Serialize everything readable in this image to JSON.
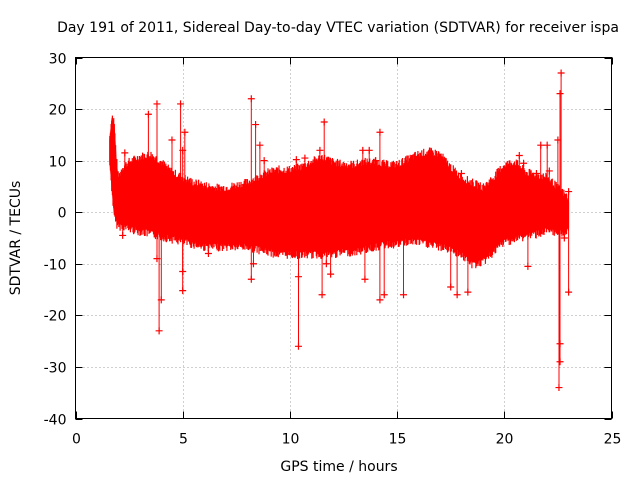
{
  "chart_data": {
    "type": "scatter",
    "title": "Day 191 of 2011, Sidereal Day-to-day VTEC variation (SDTVAR) for receiver ispa",
    "xlabel": "GPS time / hours",
    "ylabel": "SDTVAR / TECUs",
    "xlim": [
      0,
      25
    ],
    "ylim": [
      -40,
      30
    ],
    "xticks": [
      0,
      5,
      10,
      15,
      20,
      25
    ],
    "yticks": [
      -40,
      -30,
      -20,
      -10,
      0,
      10,
      20,
      30
    ],
    "grid": true,
    "marker": "plus",
    "color": "#ff0000",
    "envelope": {
      "description": "dense band of points with error bars, upper and lower bounds vs time",
      "x": [
        1.6,
        1.7,
        1.8,
        1.9,
        2.0,
        2.2,
        2.5,
        3.0,
        3.5,
        4.0,
        4.5,
        5.0,
        5.5,
        6.0,
        6.5,
        7.0,
        7.5,
        8.0,
        8.5,
        9.0,
        9.5,
        10.0,
        10.5,
        11.0,
        11.5,
        12.0,
        12.5,
        13.0,
        13.5,
        14.0,
        14.5,
        15.0,
        15.5,
        16.0,
        16.5,
        17.0,
        17.5,
        18.0,
        18.5,
        19.0,
        19.5,
        20.0,
        20.5,
        21.0,
        21.5,
        22.0,
        22.5,
        23.0
      ],
      "upper": [
        14,
        18,
        17,
        10,
        6,
        8,
        9,
        10,
        10.5,
        9,
        7,
        6,
        5,
        4.5,
        4,
        4,
        4.5,
        5,
        6,
        7,
        7.5,
        7.5,
        8,
        9,
        10,
        9,
        8.5,
        8.5,
        9,
        9,
        8.5,
        8.5,
        9.5,
        10.5,
        11,
        10.5,
        8,
        6,
        5,
        4,
        6,
        8.5,
        9,
        7,
        6.5,
        6,
        4,
        2
      ],
      "lower": [
        10,
        5,
        0,
        -1.5,
        -2,
        -2,
        -2.5,
        -3,
        -3.5,
        -4,
        -4.5,
        -5,
        -5.5,
        -6,
        -6,
        -6,
        -6,
        -6,
        -6.5,
        -7,
        -7.5,
        -7.5,
        -7.5,
        -7.5,
        -7.5,
        -7.5,
        -7,
        -7,
        -6.5,
        -6,
        -5.5,
        -5.5,
        -5,
        -5,
        -5.5,
        -6,
        -6.5,
        -7.5,
        -9.5,
        -9,
        -7,
        -5,
        -4.5,
        -4,
        -3.5,
        -3,
        -3.5,
        -3
      ]
    },
    "outliers": [
      [
        2.2,
        -4.5
      ],
      [
        2.3,
        11.5
      ],
      [
        3.4,
        19
      ],
      [
        3.8,
        21
      ],
      [
        3.8,
        -9
      ],
      [
        3.9,
        -23
      ],
      [
        4.0,
        -17
      ],
      [
        4.5,
        14
      ],
      [
        4.9,
        21
      ],
      [
        5.0,
        -11.5
      ],
      [
        5.0,
        -15.2
      ],
      [
        5.1,
        15.5
      ],
      [
        5.0,
        12
      ],
      [
        6.2,
        -8
      ],
      [
        8.2,
        22
      ],
      [
        8.2,
        -13
      ],
      [
        8.4,
        17
      ],
      [
        8.6,
        13
      ],
      [
        8.8,
        10
      ],
      [
        8.7,
        6.5
      ],
      [
        8.3,
        -10
      ],
      [
        9.2,
        -6
      ],
      [
        10.3,
        10.2
      ],
      [
        10.7,
        10.5
      ],
      [
        10.4,
        -12.5
      ],
      [
        10.4,
        -26
      ],
      [
        10.1,
        -8
      ],
      [
        11.6,
        17.5
      ],
      [
        11.4,
        12
      ],
      [
        11.5,
        -16
      ],
      [
        11.7,
        -10
      ],
      [
        11.9,
        -12
      ],
      [
        13.4,
        12
      ],
      [
        13.5,
        -13
      ],
      [
        13.7,
        12
      ],
      [
        14.0,
        10
      ],
      [
        14.2,
        15.5
      ],
      [
        14.2,
        -17
      ],
      [
        14.4,
        -16
      ],
      [
        15.3,
        -16
      ],
      [
        16.8,
        7.5
      ],
      [
        17.5,
        -14.5
      ],
      [
        17.8,
        -16
      ],
      [
        18.0,
        7.5
      ],
      [
        18.3,
        -15.5
      ],
      [
        20.1,
        4
      ],
      [
        20.7,
        11
      ],
      [
        20.9,
        9.5
      ],
      [
        21.1,
        -10.5
      ],
      [
        21.5,
        7.5
      ],
      [
        21.7,
        13
      ],
      [
        22.1,
        8
      ],
      [
        22.0,
        13
      ],
      [
        22.5,
        14
      ],
      [
        22.6,
        23
      ],
      [
        22.65,
        27
      ],
      [
        22.6,
        -25.5
      ],
      [
        22.55,
        -34
      ],
      [
        22.6,
        -29
      ],
      [
        23.0,
        4
      ],
      [
        23.0,
        -15.5
      ],
      [
        22.8,
        -5
      ]
    ]
  }
}
